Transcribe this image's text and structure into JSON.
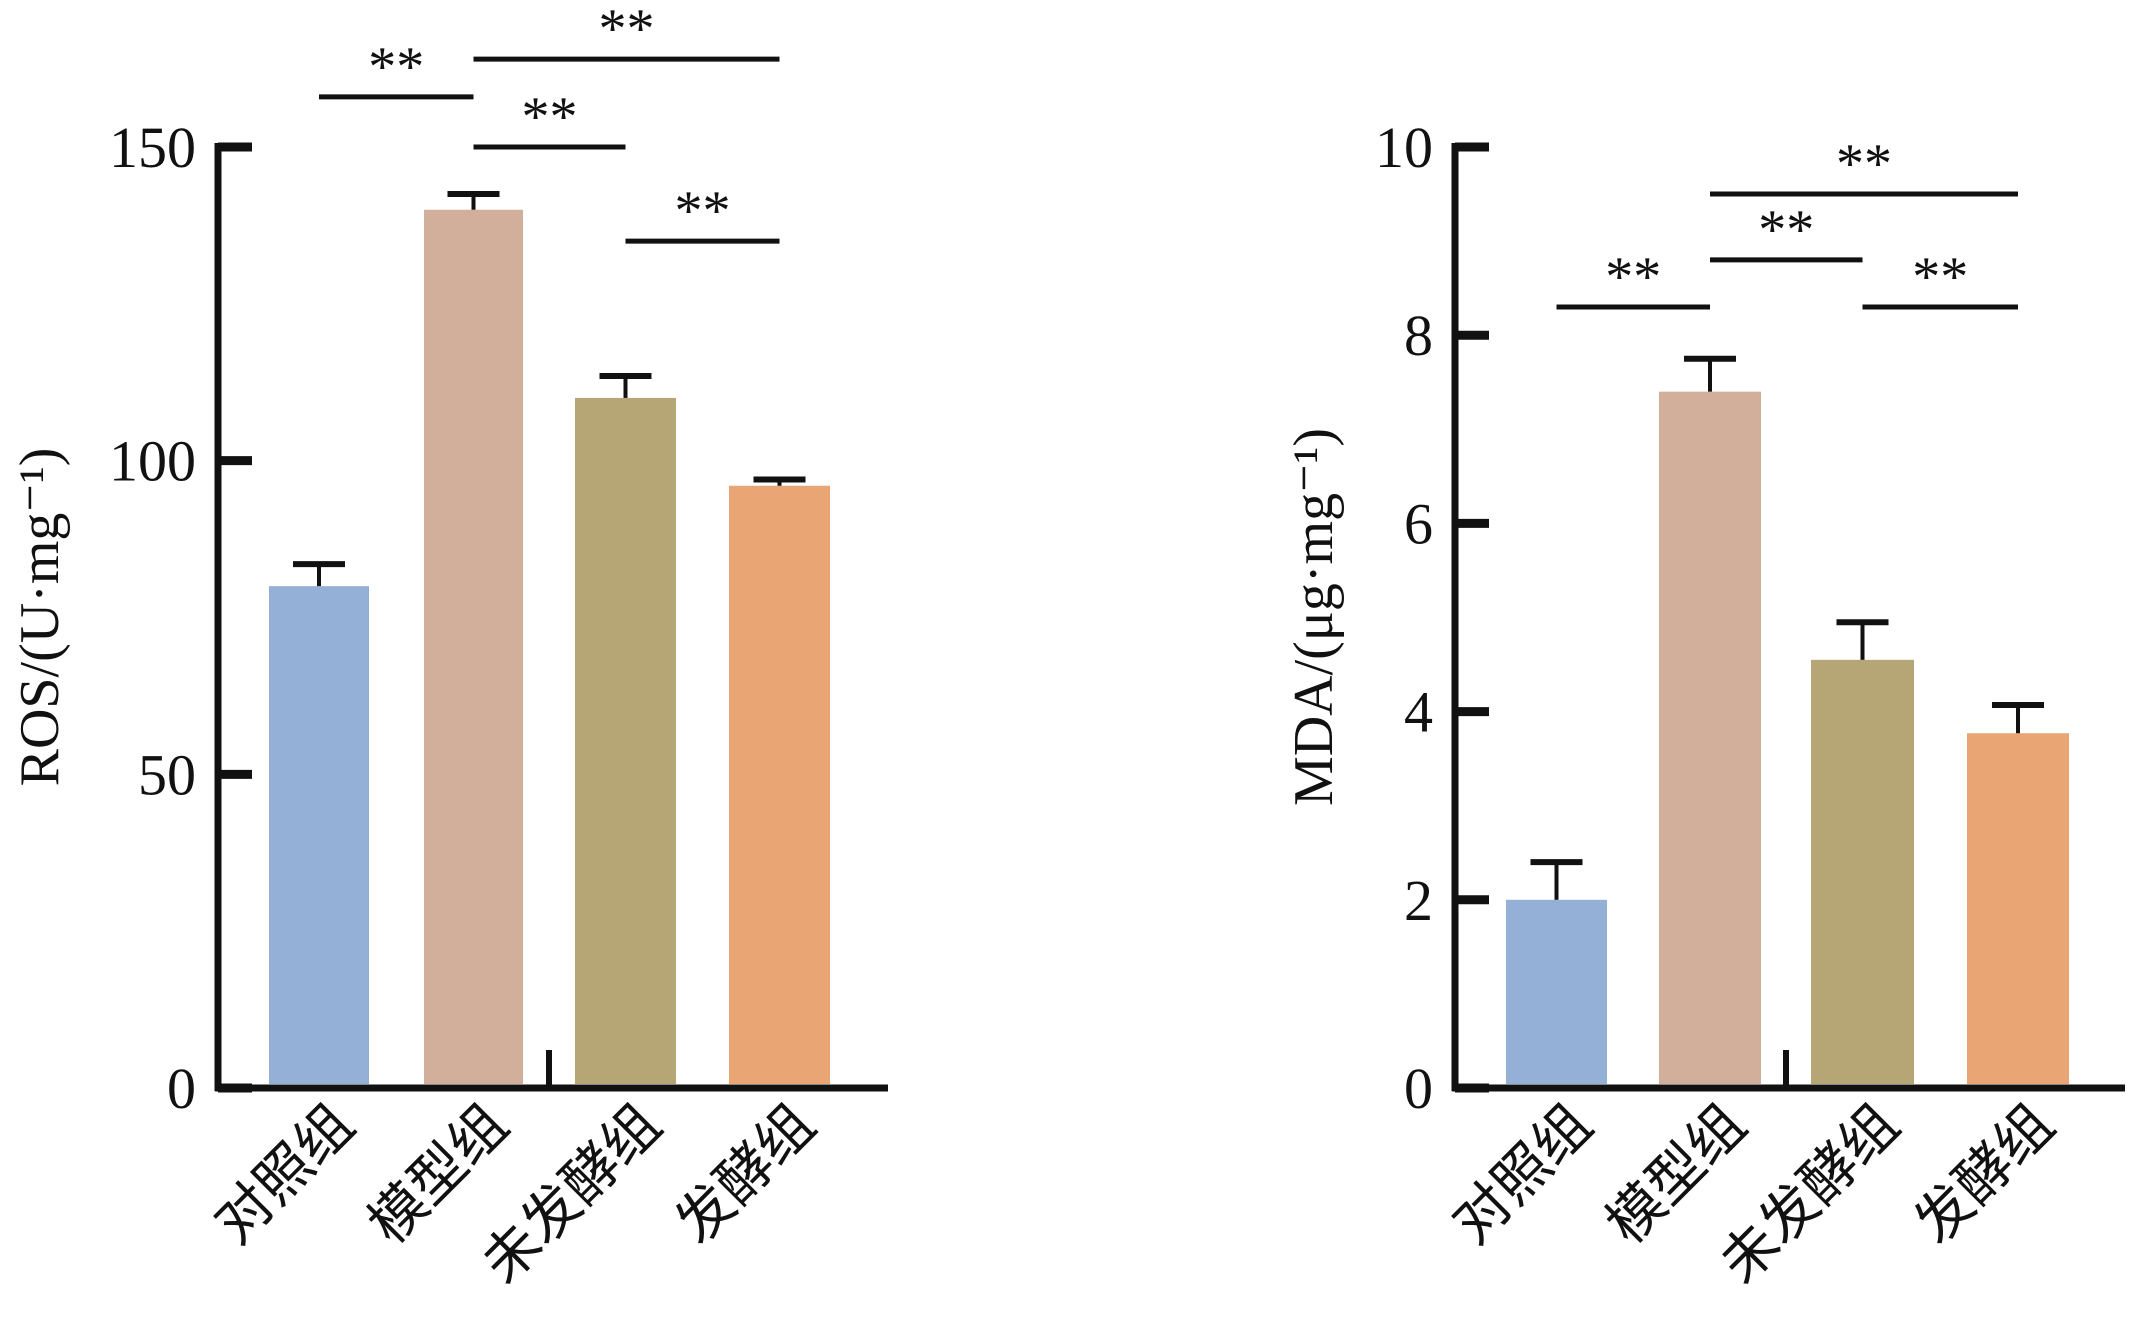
{
  "chart_data": [
    {
      "type": "bar",
      "title": "",
      "xlabel": "",
      "ylabel": "ROS/(U·mg⁻¹)",
      "ylim": [
        0,
        150
      ],
      "yticks": [
        "0",
        "50",
        "100",
        "150"
      ],
      "categories": [
        "对照组",
        "模型组",
        "未发酵组",
        "发酵组"
      ],
      "values": [
        80,
        140,
        110,
        96
      ],
      "errors": [
        3.5,
        2.5,
        3.5,
        1
      ],
      "colors": [
        "#95b0d6",
        "#d2af9a",
        "#b6a676",
        "#e9a574"
      ],
      "significance": [
        {
          "from": 0,
          "to": 1,
          "label": "**",
          "level": 158
        },
        {
          "from": 1,
          "to": 3,
          "label": "**",
          "level": 164
        },
        {
          "from": 1,
          "to": 2,
          "label": "**",
          "level": 150
        },
        {
          "from": 2,
          "to": 3,
          "label": "**",
          "level": 135
        }
      ]
    },
    {
      "type": "bar",
      "title": "",
      "xlabel": "",
      "ylabel": "MDA/(μg·mg⁻¹)",
      "ylim": [
        0,
        10
      ],
      "yticks": [
        "0",
        "2",
        "4",
        "6",
        "8",
        "10"
      ],
      "categories": [
        "对照组",
        "模型组",
        "未发酵组",
        "发酵组"
      ],
      "values": [
        2.0,
        7.4,
        4.55,
        3.77
      ],
      "errors": [
        0.4,
        0.35,
        0.4,
        0.3
      ],
      "colors": [
        "#95b0d6",
        "#d2af9a",
        "#b6a676",
        "#e9a574"
      ],
      "significance": [
        {
          "from": 0,
          "to": 1,
          "label": "**",
          "level": 8.3
        },
        {
          "from": 1,
          "to": 3,
          "label": "**",
          "level": 9.5
        },
        {
          "from": 1,
          "to": 2,
          "label": "**",
          "level": 8.8
        },
        {
          "from": 2,
          "to": 3,
          "label": "**",
          "level": 8.3
        }
      ]
    }
  ]
}
